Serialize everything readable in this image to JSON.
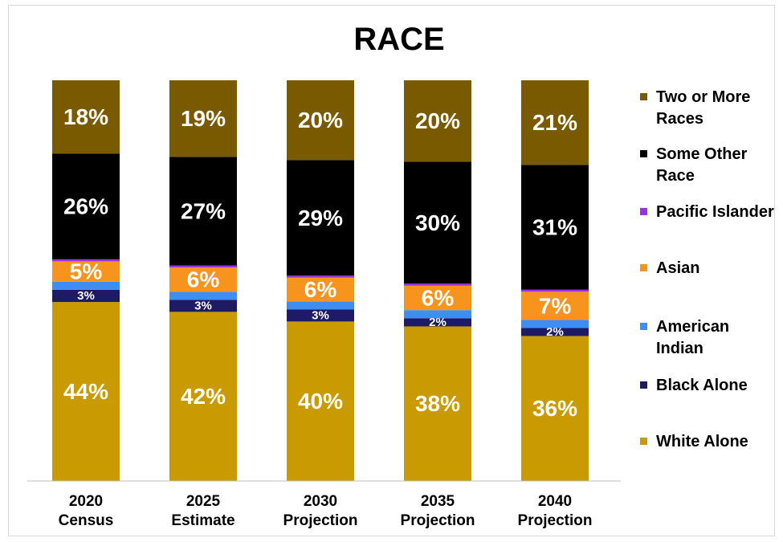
{
  "chart_data": {
    "type": "bar",
    "stacked": true,
    "title": "RACE",
    "categories": [
      [
        "2020",
        "Census"
      ],
      [
        "2025",
        "Estimate"
      ],
      [
        "2030",
        "Projection"
      ],
      [
        "2035",
        "Projection"
      ],
      [
        "2040",
        "Projection"
      ]
    ],
    "series": [
      {
        "name": "White Alone",
        "color": "#c99a02",
        "values": [
          44,
          42,
          40,
          38,
          36
        ],
        "labels": [
          "44%",
          "42%",
          "40%",
          "38%",
          "36%"
        ]
      },
      {
        "name": "Black Alone",
        "color": "#1f1a66",
        "values": [
          3,
          3,
          3,
          2,
          2
        ],
        "labels": [
          "3%",
          "3%",
          "3%",
          "2%",
          "2%"
        ]
      },
      {
        "name": "American Indian",
        "color": "#3d8ef0",
        "values": [
          2,
          2,
          2,
          2,
          2
        ],
        "labels": [
          "",
          "",
          "",
          "",
          ""
        ]
      },
      {
        "name": "Asian",
        "color": "#f7941d",
        "values": [
          5,
          6,
          6,
          6,
          7
        ],
        "labels": [
          "5%",
          "6%",
          "6%",
          "6%",
          "7%"
        ]
      },
      {
        "name": "Pacific Islander",
        "color": "#9b30e8",
        "values": [
          0.5,
          0.5,
          0.5,
          0.5,
          0.5
        ],
        "labels": [
          "",
          "",
          "",
          "",
          ""
        ]
      },
      {
        "name": "Some Other Race",
        "color": "#000000",
        "values": [
          26,
          27,
          29,
          30,
          31
        ],
        "labels": [
          "26%",
          "27%",
          "29%",
          "30%",
          "31%"
        ]
      },
      {
        "name": "Two or More Races",
        "color": "#7a5a00",
        "values": [
          18,
          19,
          20,
          20,
          21
        ],
        "labels": [
          "18%",
          "19%",
          "20%",
          "20%",
          "21%"
        ]
      }
    ],
    "ylim": [
      0,
      100
    ],
    "grid": false,
    "legend_position": "right",
    "legend_order": [
      "Two or More Races",
      "Some Other Race",
      "Pacific Islander",
      "Asian",
      "American Indian",
      "Black Alone",
      "White Alone"
    ],
    "legend_lines": {
      "Two or More Races": [
        "Two or More",
        "Races"
      ],
      "Some Other Race": [
        "Some Other",
        "Race"
      ],
      "Pacific Islander": [
        "Pacific Islander"
      ],
      "Asian": [
        "Asian"
      ],
      "American Indian": [
        "American",
        "Indian"
      ],
      "Black Alone": [
        "Black Alone"
      ],
      "White Alone": [
        "White Alone"
      ]
    }
  }
}
